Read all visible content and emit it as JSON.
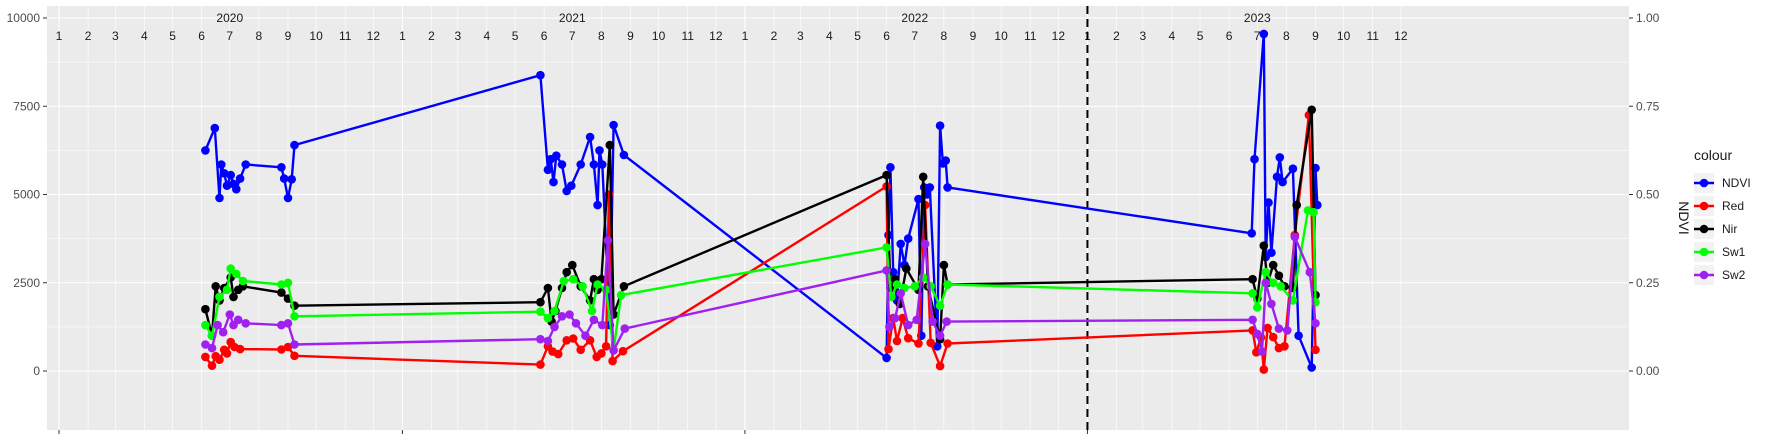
{
  "chart_data": {
    "type": "line",
    "x_unit": "year-month",
    "x_range": [
      "2020-01-01",
      "2023-12-31"
    ],
    "y_left": {
      "range": [
        0,
        10000
      ],
      "ticks": [
        0,
        2500,
        5000,
        7500,
        10000
      ],
      "tick_labels": [
        "0",
        "2500",
        "5000",
        "7500",
        "10000"
      ]
    },
    "y_right": {
      "label": "NDVI",
      "range": [
        0,
        1
      ],
      "ticks": [
        0,
        0.25,
        0.5,
        0.75,
        1.0
      ],
      "tick_labels": [
        "0.00",
        "0.25",
        "0.50",
        "0.75",
        "1.00"
      ]
    },
    "years": [
      "2020",
      "2021",
      "2022",
      "2023"
    ],
    "months": [
      "1",
      "2",
      "3",
      "4",
      "5",
      "6",
      "7",
      "8",
      "9",
      "10",
      "11",
      "12"
    ],
    "vline_date": "2023-01-01",
    "grid": true,
    "legend": {
      "title": "colour",
      "placement": "right"
    },
    "series": [
      {
        "name": "NDVI",
        "color": "#0000ff",
        "axis": "right",
        "points": [
          [
            "2020-06-05",
            0.625
          ],
          [
            "2020-06-15",
            0.688
          ],
          [
            "2020-06-20",
            0.49
          ],
          [
            "2020-06-22",
            0.585
          ],
          [
            "2020-06-25",
            0.56
          ],
          [
            "2020-06-28",
            0.525
          ],
          [
            "2020-07-02",
            0.555
          ],
          [
            "2020-07-05",
            0.53
          ],
          [
            "2020-07-08",
            0.515
          ],
          [
            "2020-07-12",
            0.545
          ],
          [
            "2020-07-18",
            0.585
          ],
          [
            "2020-08-25",
            0.577
          ],
          [
            "2020-08-28",
            0.545
          ],
          [
            "2020-09-01",
            0.49
          ],
          [
            "2020-09-05",
            0.543
          ],
          [
            "2020-09-08",
            0.64
          ],
          [
            "2021-05-28",
            0.838
          ],
          [
            "2021-06-05",
            0.57
          ],
          [
            "2021-06-08",
            0.6
          ],
          [
            "2021-06-11",
            0.535
          ],
          [
            "2021-06-14",
            0.61
          ],
          [
            "2021-06-20",
            0.585
          ],
          [
            "2021-06-25",
            0.51
          ],
          [
            "2021-06-30",
            0.525
          ],
          [
            "2021-07-10",
            0.585
          ],
          [
            "2021-07-20",
            0.663
          ],
          [
            "2021-07-24",
            0.585
          ],
          [
            "2021-07-28",
            0.47
          ],
          [
            "2021-07-30",
            0.625
          ],
          [
            "2021-08-02",
            0.585
          ],
          [
            "2021-08-10",
            0.13
          ],
          [
            "2021-08-14",
            0.697
          ],
          [
            "2021-08-25",
            0.612
          ],
          [
            "2022-06-01",
            0.037
          ],
          [
            "2022-06-03",
            0.385
          ],
          [
            "2022-06-05",
            0.577
          ],
          [
            "2022-06-08",
            0.28
          ],
          [
            "2022-06-12",
            0.2
          ],
          [
            "2022-06-16",
            0.36
          ],
          [
            "2022-06-20",
            0.3
          ],
          [
            "2022-06-24",
            0.375
          ],
          [
            "2022-07-05",
            0.487
          ],
          [
            "2022-07-08",
            0.1
          ],
          [
            "2022-07-11",
            0.52
          ],
          [
            "2022-07-14",
            0.5
          ],
          [
            "2022-07-17",
            0.52
          ],
          [
            "2022-07-25",
            0.07
          ],
          [
            "2022-07-28",
            0.695
          ],
          [
            "2022-07-31",
            0.588
          ],
          [
            "2022-08-03",
            0.596
          ],
          [
            "2022-08-05",
            0.52
          ],
          [
            "2023-06-25",
            0.39
          ],
          [
            "2023-06-28",
            0.6
          ],
          [
            "2023-07-08",
            0.955
          ],
          [
            "2023-07-10",
            0.323
          ],
          [
            "2023-07-13",
            0.477
          ],
          [
            "2023-07-16",
            0.335
          ],
          [
            "2023-07-22",
            0.55
          ],
          [
            "2023-07-25",
            0.605
          ],
          [
            "2023-07-28",
            0.535
          ],
          [
            "2023-08-08",
            0.573
          ],
          [
            "2023-08-14",
            0.1
          ],
          [
            "2023-08-28",
            0.01
          ],
          [
            "2023-09-01",
            0.575
          ],
          [
            "2023-09-03",
            0.47
          ]
        ]
      },
      {
        "name": "Red",
        "color": "#ff0000",
        "axis": "left",
        "points": [
          [
            "2020-06-05",
            400
          ],
          [
            "2020-06-12",
            150
          ],
          [
            "2020-06-16",
            420
          ],
          [
            "2020-06-20",
            320
          ],
          [
            "2020-06-25",
            600
          ],
          [
            "2020-06-28",
            500
          ],
          [
            "2020-07-02",
            820
          ],
          [
            "2020-07-06",
            680
          ],
          [
            "2020-07-12",
            620
          ],
          [
            "2020-08-25",
            610
          ],
          [
            "2020-09-01",
            680
          ],
          [
            "2020-09-08",
            430
          ],
          [
            "2021-05-28",
            180
          ],
          [
            "2021-06-05",
            700
          ],
          [
            "2021-06-10",
            550
          ],
          [
            "2021-06-16",
            480
          ],
          [
            "2021-06-25",
            870
          ],
          [
            "2021-07-02",
            920
          ],
          [
            "2021-07-10",
            600
          ],
          [
            "2021-07-20",
            870
          ],
          [
            "2021-07-27",
            400
          ],
          [
            "2021-08-01",
            500
          ],
          [
            "2021-08-06",
            700
          ],
          [
            "2021-08-09",
            5000
          ],
          [
            "2021-08-13",
            280
          ],
          [
            "2021-08-24",
            560
          ],
          [
            "2022-06-01",
            5230
          ],
          [
            "2022-06-03",
            620
          ],
          [
            "2022-06-08",
            1500
          ],
          [
            "2022-06-12",
            850
          ],
          [
            "2022-06-18",
            1500
          ],
          [
            "2022-06-24",
            930
          ],
          [
            "2022-07-05",
            780
          ],
          [
            "2022-07-12",
            4700
          ],
          [
            "2022-07-18",
            800
          ],
          [
            "2022-07-28",
            140
          ],
          [
            "2022-08-05",
            780
          ],
          [
            "2023-06-26",
            1150
          ],
          [
            "2023-06-30",
            530
          ],
          [
            "2023-07-05",
            950
          ],
          [
            "2023-07-08",
            40
          ],
          [
            "2023-07-12",
            1220
          ],
          [
            "2023-07-18",
            960
          ],
          [
            "2023-07-24",
            650
          ],
          [
            "2023-07-30",
            700
          ],
          [
            "2023-08-10",
            3850
          ],
          [
            "2023-08-25",
            7250
          ],
          [
            "2023-09-01",
            600
          ]
        ]
      },
      {
        "name": "Nir",
        "color": "#000000",
        "axis": "left",
        "points": [
          [
            "2020-06-05",
            1750
          ],
          [
            "2020-06-12",
            1000
          ],
          [
            "2020-06-16",
            2400
          ],
          [
            "2020-06-20",
            2000
          ],
          [
            "2020-06-25",
            2350
          ],
          [
            "2020-07-02",
            2650
          ],
          [
            "2020-07-05",
            2100
          ],
          [
            "2020-07-10",
            2300
          ],
          [
            "2020-07-15",
            2400
          ],
          [
            "2020-08-25",
            2220
          ],
          [
            "2020-09-01",
            2050
          ],
          [
            "2020-09-08",
            1850
          ],
          [
            "2021-05-28",
            1950
          ],
          [
            "2021-06-05",
            2350
          ],
          [
            "2021-06-09",
            1400
          ],
          [
            "2021-06-13",
            1700
          ],
          [
            "2021-06-20",
            2350
          ],
          [
            "2021-06-25",
            2800
          ],
          [
            "2021-07-01",
            3000
          ],
          [
            "2021-07-10",
            2400
          ],
          [
            "2021-07-20",
            2000
          ],
          [
            "2021-07-24",
            2600
          ],
          [
            "2021-07-28",
            2300
          ],
          [
            "2021-08-01",
            2600
          ],
          [
            "2021-08-10",
            6400
          ],
          [
            "2021-08-14",
            1600
          ],
          [
            "2021-08-25",
            2400
          ],
          [
            "2022-06-01",
            5550
          ],
          [
            "2022-06-05",
            2350
          ],
          [
            "2022-06-10",
            2600
          ],
          [
            "2022-06-15",
            1900
          ],
          [
            "2022-06-22",
            2900
          ],
          [
            "2022-07-05",
            2300
          ],
          [
            "2022-07-10",
            5500
          ],
          [
            "2022-07-15",
            2400
          ],
          [
            "2022-07-28",
            900
          ],
          [
            "2022-08-01",
            3000
          ],
          [
            "2022-08-05",
            2450
          ],
          [
            "2023-06-26",
            2600
          ],
          [
            "2023-07-01",
            2050
          ],
          [
            "2023-07-08",
            3550
          ],
          [
            "2023-07-12",
            2500
          ],
          [
            "2023-07-18",
            3000
          ],
          [
            "2023-07-24",
            2700
          ],
          [
            "2023-07-30",
            2400
          ],
          [
            "2023-08-08",
            2350
          ],
          [
            "2023-08-12",
            4700
          ],
          [
            "2023-08-28",
            7400
          ],
          [
            "2023-09-01",
            2150
          ]
        ]
      },
      {
        "name": "Sw1",
        "color": "#00ff00",
        "axis": "left",
        "points": [
          [
            "2020-06-05",
            1300
          ],
          [
            "2020-06-12",
            1000
          ],
          [
            "2020-06-20",
            2100
          ],
          [
            "2020-06-28",
            2300
          ],
          [
            "2020-07-02",
            2900
          ],
          [
            "2020-07-08",
            2750
          ],
          [
            "2020-07-15",
            2550
          ],
          [
            "2020-08-25",
            2450
          ],
          [
            "2020-09-01",
            2500
          ],
          [
            "2020-09-08",
            1550
          ],
          [
            "2021-05-28",
            1680
          ],
          [
            "2021-06-05",
            1500
          ],
          [
            "2021-06-12",
            1700
          ],
          [
            "2021-06-22",
            2550
          ],
          [
            "2021-07-02",
            2600
          ],
          [
            "2021-07-12",
            2400
          ],
          [
            "2021-07-22",
            1700
          ],
          [
            "2021-07-28",
            2450
          ],
          [
            "2021-08-06",
            2300
          ],
          [
            "2021-08-14",
            600
          ],
          [
            "2021-08-22",
            2150
          ],
          [
            "2022-06-01",
            3500
          ],
          [
            "2022-06-06",
            2100
          ],
          [
            "2022-06-12",
            2450
          ],
          [
            "2022-06-20",
            2350
          ],
          [
            "2022-07-01",
            2400
          ],
          [
            "2022-07-10",
            2650
          ],
          [
            "2022-07-18",
            2400
          ],
          [
            "2022-07-28",
            1850
          ],
          [
            "2022-08-05",
            2450
          ],
          [
            "2023-06-26",
            2200
          ],
          [
            "2023-07-01",
            1800
          ],
          [
            "2023-07-10",
            2800
          ],
          [
            "2023-07-18",
            2500
          ],
          [
            "2023-07-26",
            2400
          ],
          [
            "2023-08-08",
            2000
          ],
          [
            "2023-08-24",
            4550
          ],
          [
            "2023-08-30",
            4500
          ],
          [
            "2023-09-01",
            1950
          ]
        ]
      },
      {
        "name": "Sw2",
        "color": "#a020f0",
        "axis": "left",
        "points": [
          [
            "2020-06-05",
            750
          ],
          [
            "2020-06-12",
            650
          ],
          [
            "2020-06-18",
            1300
          ],
          [
            "2020-06-24",
            1100
          ],
          [
            "2020-07-01",
            1600
          ],
          [
            "2020-07-05",
            1300
          ],
          [
            "2020-07-10",
            1450
          ],
          [
            "2020-07-18",
            1350
          ],
          [
            "2020-08-25",
            1300
          ],
          [
            "2020-09-01",
            1350
          ],
          [
            "2020-09-08",
            750
          ],
          [
            "2021-05-28",
            900
          ],
          [
            "2021-06-05",
            850
          ],
          [
            "2021-06-12",
            1250
          ],
          [
            "2021-06-20",
            1550
          ],
          [
            "2021-06-28",
            1600
          ],
          [
            "2021-07-05",
            1350
          ],
          [
            "2021-07-15",
            1000
          ],
          [
            "2021-07-24",
            1450
          ],
          [
            "2021-08-02",
            1300
          ],
          [
            "2021-08-08",
            3700
          ],
          [
            "2021-08-14",
            580
          ],
          [
            "2021-08-26",
            1200
          ],
          [
            "2022-06-01",
            2850
          ],
          [
            "2022-06-04",
            1250
          ],
          [
            "2022-06-10",
            1500
          ],
          [
            "2022-06-16",
            2200
          ],
          [
            "2022-06-24",
            1300
          ],
          [
            "2022-07-03",
            1450
          ],
          [
            "2022-07-12",
            3600
          ],
          [
            "2022-07-20",
            1400
          ],
          [
            "2022-07-28",
            1000
          ],
          [
            "2022-08-04",
            1400
          ],
          [
            "2023-06-26",
            1450
          ],
          [
            "2023-07-01",
            1050
          ],
          [
            "2023-07-06",
            550
          ],
          [
            "2023-07-10",
            2500
          ],
          [
            "2023-07-16",
            1900
          ],
          [
            "2023-07-24",
            1200
          ],
          [
            "2023-08-02",
            1150
          ],
          [
            "2023-08-10",
            3800
          ],
          [
            "2023-08-26",
            2800
          ],
          [
            "2023-09-01",
            1350
          ]
        ]
      }
    ]
  }
}
